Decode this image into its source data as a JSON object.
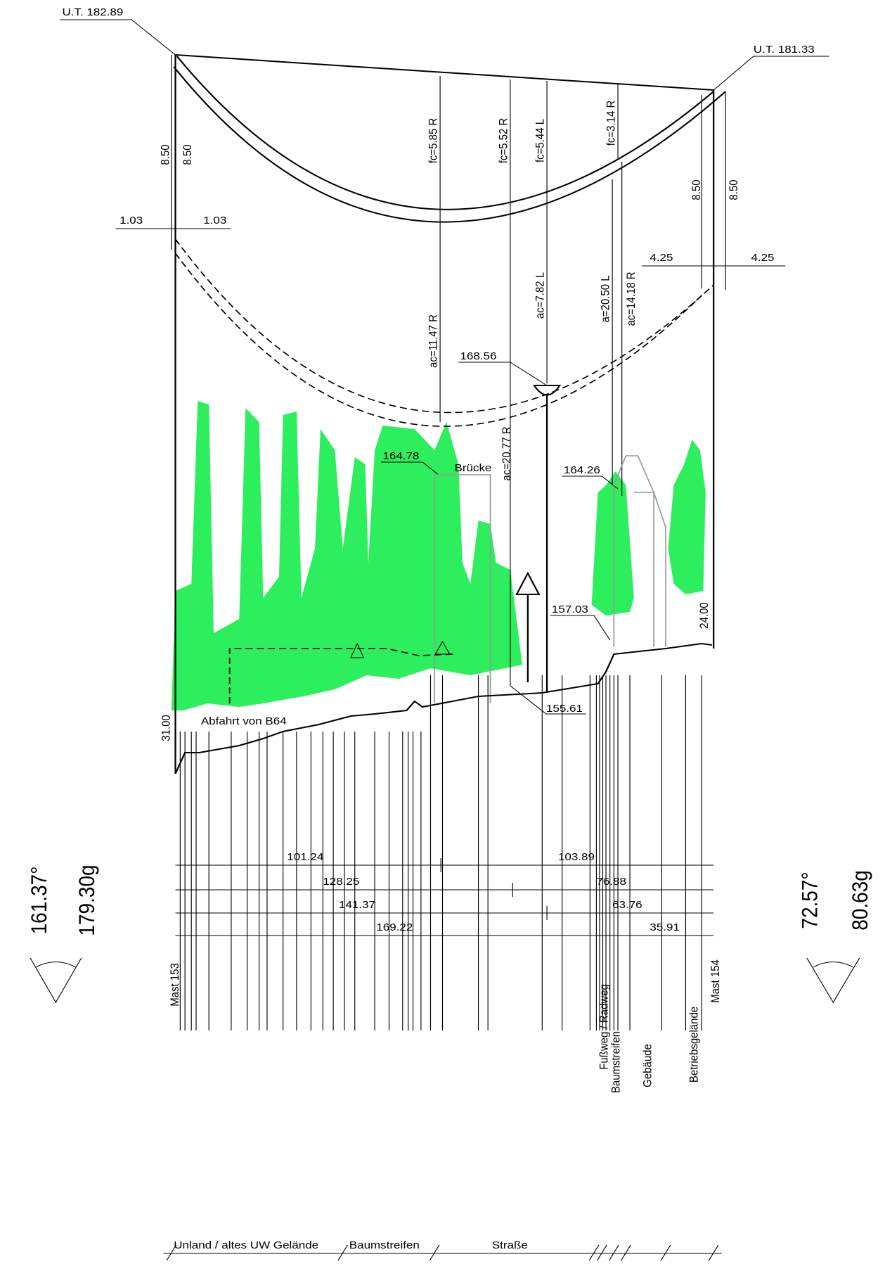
{
  "towers": {
    "left": {
      "name": "Mast 153",
      "ut": "U.T. 182.89",
      "angle_deg": "161.37°",
      "angle_gon": "179.30g",
      "height": "31.00"
    },
    "right": {
      "name": "Mast 154",
      "ut": "U.T. 181.33",
      "angle_deg": "72.57°",
      "angle_gon": "80.63g",
      "height": "24.00"
    }
  },
  "offsets": [
    "8.50",
    "8.50",
    "8.50",
    "8.50",
    "1.03",
    "1.03",
    "4.25",
    "4.25"
  ],
  "sags": [
    "fc=5.85 R",
    "fc=5.52 R",
    "fc=5.44 L",
    "fc=3.14 R"
  ],
  "clearances": [
    "ac=11.47 R",
    "ac=7.82 L",
    "a=20.50 L",
    "ac=14.18 R",
    "ac=20.77 R"
  ],
  "elevations": [
    "168.56",
    "164.78",
    "164.26",
    "157.03",
    "155.61"
  ],
  "annotations": [
    "Brücke",
    "Abfahrt von B64"
  ],
  "distances": [
    [
      "101.24",
      "103.89"
    ],
    [
      "128.25",
      "76.88"
    ],
    [
      "141.37",
      "63.76"
    ],
    [
      "169.22",
      "35.91"
    ]
  ],
  "land_use": [
    "Unland / altes UW Gelände",
    "Baumstreifen",
    "Straße",
    "Fußweg / Radweg",
    "Baumstreifen",
    "Gebäude",
    "Betriebsgelände"
  ]
}
